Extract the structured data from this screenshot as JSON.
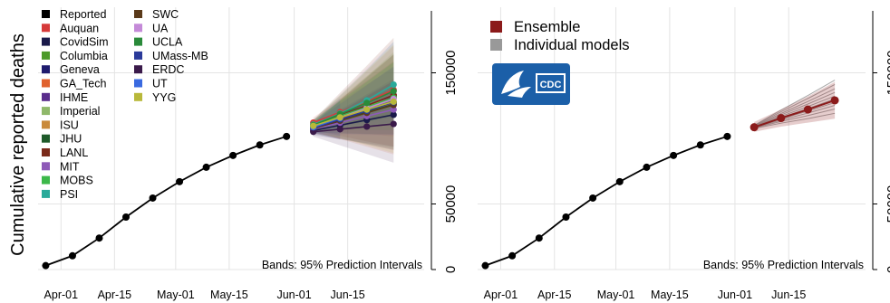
{
  "figure": {
    "ylabel": "Cumulative reported deaths",
    "band_note": "Bands: 95% Prediction Intervals",
    "logo_text": "CDC",
    "yticks": [
      "0",
      "50000",
      "150000"
    ],
    "xticks": [
      "Apr-01",
      "Apr-15",
      "May-01",
      "May-15",
      "Jun-01",
      "Jun-15"
    ]
  },
  "chart_data": [
    {
      "type": "line",
      "panel": "left",
      "ylim": [
        0,
        200000
      ],
      "grid": true,
      "legend_position": "top-left",
      "reported": {
        "name": "Reported",
        "color": "#000000",
        "x": [
          "Mar-28",
          "Apr-04",
          "Apr-11",
          "Apr-18",
          "Apr-25",
          "May-02",
          "May-09",
          "May-16",
          "May-23",
          "May-30"
        ],
        "values": [
          3000,
          10500,
          24000,
          40000,
          54500,
          67000,
          78000,
          87000,
          95000,
          101500
        ]
      },
      "forecast_x": [
        "Jun-06",
        "Jun-13",
        "Jun-20",
        "Jun-27"
      ],
      "models": [
        {
          "name": "Auquan",
          "color": "#d63a3a",
          "values": [
            112000,
            120000,
            128000,
            137000
          ]
        },
        {
          "name": "CovidSim",
          "color": "#1a1a4a",
          "values": [
            106000,
            110000,
            114000,
            118000
          ]
        },
        {
          "name": "Columbia",
          "color": "#4c9a2a",
          "values": [
            108000,
            116000,
            124000,
            133000
          ]
        },
        {
          "name": "Geneva",
          "color": "#1f1b6e",
          "values": [
            107500,
            113000
          ]
        },
        {
          "name": "GA_Tech",
          "color": "#e0622e",
          "values": [
            109000,
            115000,
            121000,
            127000
          ]
        },
        {
          "name": "IHME",
          "color": "#5a2d8c",
          "values": [
            110000,
            118000,
            125000,
            132000
          ]
        },
        {
          "name": "Imperial",
          "color": "#8fb86a",
          "values": [
            108500,
            116500
          ]
        },
        {
          "name": "ISU",
          "color": "#c98a3a",
          "values": [
            109500,
            117000,
            124500,
            131000
          ]
        },
        {
          "name": "JHU",
          "color": "#1e5a2a",
          "values": [
            108000,
            114000,
            120000,
            126000
          ]
        },
        {
          "name": "LANL",
          "color": "#7a2a1a",
          "values": [
            110000,
            117500,
            125000,
            133000
          ]
        },
        {
          "name": "MIT",
          "color": "#8e5ab8",
          "values": [
            107000,
            112000,
            117000,
            122000
          ]
        },
        {
          "name": "MOBS",
          "color": "#3cb84a",
          "values": [
            109000,
            117000,
            124000,
            131000
          ]
        },
        {
          "name": "PSI",
          "color": "#2aaa9a",
          "values": [
            110500,
            119000,
            129000,
            141000
          ]
        },
        {
          "name": "SWC",
          "color": "#5a3a1a",
          "values": [
            107500,
            113500,
            119500,
            125500
          ]
        },
        {
          "name": "UA",
          "color": "#c48ad8",
          "values": [
            109000,
            116000,
            123000,
            130000
          ]
        },
        {
          "name": "UCLA",
          "color": "#2a8a3a",
          "values": [
            110000,
            118500,
            127000,
            136000
          ]
        },
        {
          "name": "UMass-MB",
          "color": "#2a3a9a",
          "values": [
            108000,
            114500,
            121000,
            127500
          ]
        },
        {
          "name": "ERDC",
          "color": "#3a1a4a",
          "values": [
            105000,
            107000,
            109000,
            111000
          ]
        },
        {
          "name": "UT",
          "color": "#3a6ae0",
          "values": [
            108500,
            115500
          ]
        },
        {
          "name": "YYG",
          "color": "#b8b83a",
          "values": [
            109500,
            116000,
            122000,
            128000
          ]
        }
      ]
    },
    {
      "type": "line",
      "panel": "right",
      "ylim": [
        0,
        200000
      ],
      "grid": true,
      "legend_position": "top-left",
      "legend": [
        {
          "name": "Ensemble",
          "color": "#8b1a1a"
        },
        {
          "name": "Individual models",
          "color": "#999999"
        }
      ],
      "reported": {
        "name": "Reported",
        "color": "#000000",
        "x": [
          "Mar-28",
          "Apr-04",
          "Apr-11",
          "Apr-18",
          "Apr-25",
          "May-02",
          "May-09",
          "May-16",
          "May-23",
          "May-30"
        ],
        "values": [
          3000,
          10500,
          24000,
          40000,
          54500,
          67000,
          78000,
          87000,
          95000,
          101500
        ]
      },
      "forecast_x": [
        "Jun-06",
        "Jun-13",
        "Jun-20",
        "Jun-27"
      ],
      "ensemble": {
        "name": "Ensemble",
        "color": "#8b1a1a",
        "values": [
          108500,
          115500,
          122000,
          129000
        ],
        "lower": [
          105000,
          109000,
          112000,
          115000
        ],
        "upper": [
          112500,
          122000,
          132000,
          143000
        ]
      }
    }
  ]
}
